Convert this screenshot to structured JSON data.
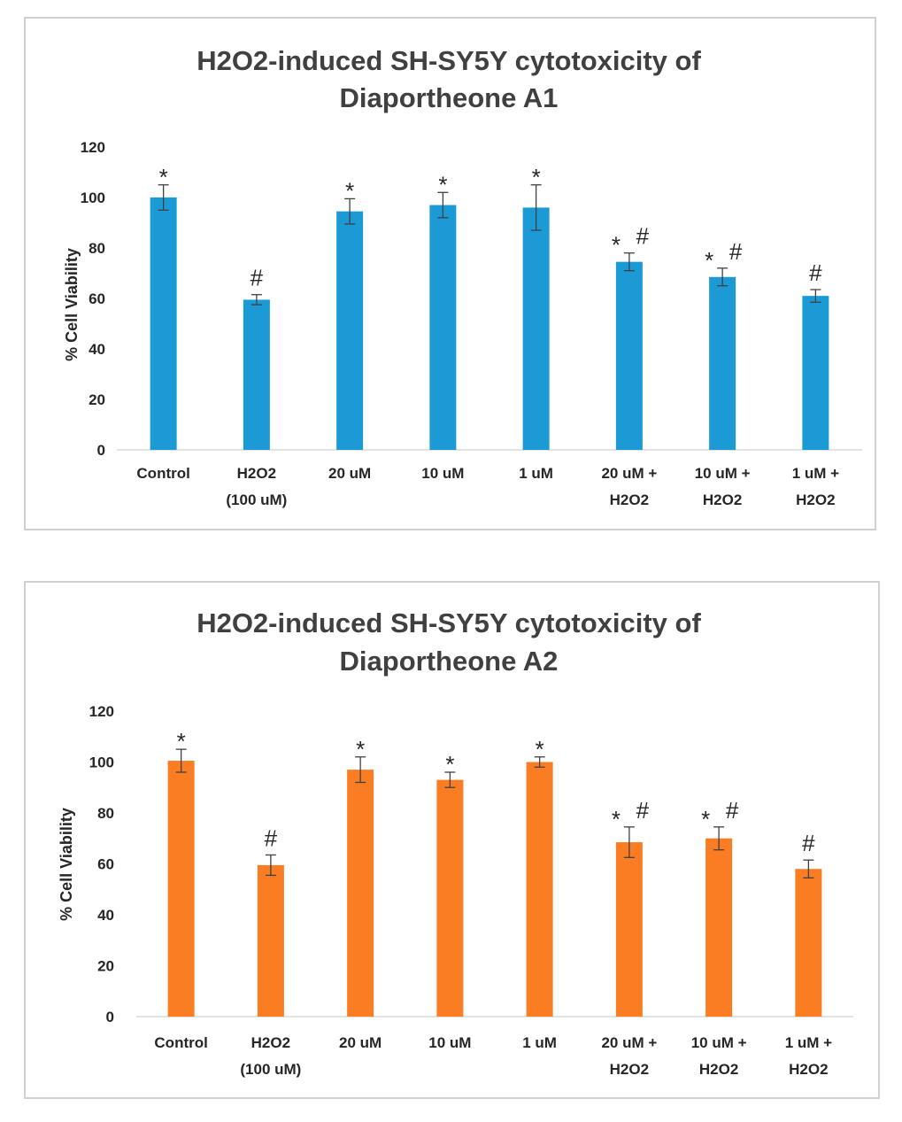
{
  "charts": [
    {
      "title_lines": [
        "H2O2-induced SH-SY5Y cytotoxicity of",
        "Diaportheone A1"
      ]
    },
    {
      "title_lines": [
        "H2O2-induced SH-SY5Y cytotoxicity of",
        "Diaportheone A2"
      ]
    }
  ],
  "chart_data": [
    {
      "type": "bar",
      "title": "H2O2-induced SH-SY5Y cytotoxicity of Diaportheone A1",
      "ylabel": "% Cell Viability",
      "xlabel": "",
      "ylim": [
        0,
        120
      ],
      "yticks": [
        0,
        20,
        40,
        60,
        80,
        100,
        120
      ],
      "bar_color": "#1b9ad6",
      "categories": [
        [
          "Control"
        ],
        [
          "H2O2",
          "(100 uM)"
        ],
        [
          "20 uM"
        ],
        [
          "10 uM"
        ],
        [
          "1 uM"
        ],
        [
          "20 uM +",
          "H2O2"
        ],
        [
          "10 uM +",
          "H2O2"
        ],
        [
          "1 uM +",
          "H2O2"
        ]
      ],
      "values": [
        100,
        59.5,
        94.5,
        97,
        96,
        74.5,
        68.5,
        61
      ],
      "errors": [
        5,
        2,
        5,
        5,
        9,
        3.5,
        3.5,
        2.5
      ],
      "annotations": [
        [
          "*"
        ],
        [
          "#"
        ],
        [
          "*"
        ],
        [
          "*"
        ],
        [
          "*"
        ],
        [
          "*",
          "#"
        ],
        [
          "*",
          "#"
        ],
        [
          "#"
        ]
      ]
    },
    {
      "type": "bar",
      "title": "H2O2-induced SH-SY5Y cytotoxicity of Diaportheone A2",
      "ylabel": "% Cell Viability",
      "xlabel": "",
      "ylim": [
        0,
        120
      ],
      "yticks": [
        0,
        20,
        40,
        60,
        80,
        100,
        120
      ],
      "bar_color": "#fb7d23",
      "categories": [
        [
          "Control"
        ],
        [
          "H2O2",
          "(100 uM)"
        ],
        [
          "20 uM"
        ],
        [
          "10 uM"
        ],
        [
          "1 uM"
        ],
        [
          "20 uM +",
          "H2O2"
        ],
        [
          "10 uM +",
          "H2O2"
        ],
        [
          "1 uM +",
          "H2O2"
        ]
      ],
      "values": [
        100.5,
        59.5,
        97,
        93,
        100,
        68.5,
        70,
        58
      ],
      "errors": [
        4.5,
        4,
        5,
        3,
        2,
        6,
        4.5,
        3.5
      ],
      "annotations": [
        [
          "*"
        ],
        [
          "#"
        ],
        [
          "*"
        ],
        [
          "*"
        ],
        [
          "*"
        ],
        [
          "*",
          "#"
        ],
        [
          "*",
          "#"
        ],
        [
          "#"
        ]
      ]
    }
  ]
}
